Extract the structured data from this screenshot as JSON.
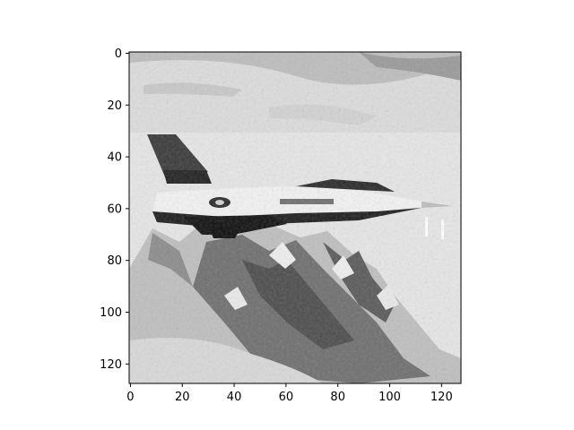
{
  "image": {
    "colormap": "gray",
    "description_of_content": "",
    "pixel_grid_size": [
      128,
      128
    ]
  },
  "axes": {
    "x_ticks": [
      "0",
      "20",
      "40",
      "60",
      "80",
      "100",
      "120"
    ],
    "y_ticks": [
      "0",
      "20",
      "40",
      "60",
      "80",
      "100",
      "120"
    ],
    "x_tick_values": [
      0,
      20,
      40,
      60,
      80,
      100,
      120
    ],
    "y_tick_values": [
      0,
      20,
      40,
      60,
      80,
      100,
      120
    ],
    "x_range": [
      -0.5,
      127.5
    ],
    "y_range": [
      127.5,
      -0.5
    ]
  },
  "colors": {
    "frame": "#000000",
    "background": "#ffffff"
  }
}
